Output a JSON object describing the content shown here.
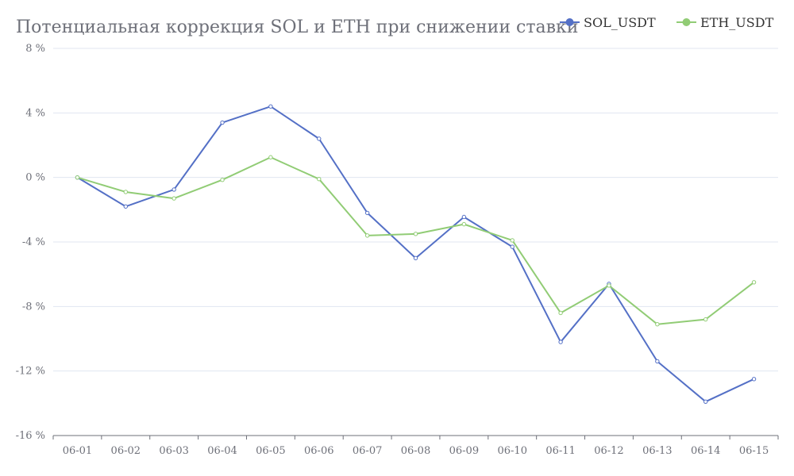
{
  "chart_data": {
    "type": "line",
    "title": "Потенциальная коррекция SOL и ETH при снижении ставки",
    "xlabel": "",
    "ylabel": "",
    "categories": [
      "06-01",
      "06-02",
      "06-03",
      "06-04",
      "06-05",
      "06-06",
      "06-07",
      "06-08",
      "06-09",
      "06-10",
      "06-11",
      "06-12",
      "06-13",
      "06-14",
      "06-15"
    ],
    "ylim": [
      -16,
      8
    ],
    "yticks": [
      8,
      4,
      0,
      -4,
      -8,
      -12,
      -16
    ],
    "ytick_labels": [
      "8 %",
      "4 %",
      "0 %",
      "-4 %",
      "-8 %",
      "-12 %",
      "-16 %"
    ],
    "grid": true,
    "legend_position": "top-right",
    "series": [
      {
        "name": "SOL_USDT",
        "color": "#5470c6",
        "values": [
          0,
          -1.8,
          -0.75,
          3.4,
          4.4,
          2.4,
          -2.2,
          -5.0,
          -2.45,
          -4.3,
          -10.2,
          -6.6,
          -11.4,
          -13.9,
          -12.5
        ]
      },
      {
        "name": "ETH_USDT",
        "color": "#91cc75",
        "values": [
          0,
          -0.9,
          -1.3,
          -0.15,
          1.25,
          -0.1,
          -3.6,
          -3.5,
          -2.9,
          -3.9,
          -8.4,
          -6.7,
          -9.1,
          -8.8,
          -6.5
        ]
      }
    ]
  }
}
